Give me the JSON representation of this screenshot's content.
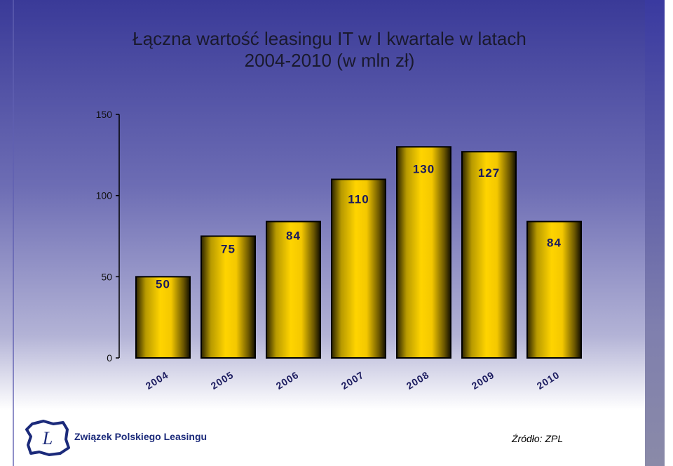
{
  "title": {
    "line1": "Łączna wartość leasingu IT w I kwartale w latach",
    "line2": "2004-2010 (w mln zł)"
  },
  "chart_data": {
    "type": "bar",
    "categories": [
      "2004",
      "2005",
      "2006",
      "2007",
      "2008",
      "2009",
      "2010"
    ],
    "values": [
      50,
      75,
      84,
      110,
      130,
      127,
      84
    ],
    "data_labels": [
      "50",
      "75",
      "84",
      "110",
      "130",
      "127",
      "84"
    ],
    "y_ticks": [
      "0",
      "50",
      "100",
      "150"
    ],
    "ylim": [
      0,
      150
    ],
    "xlabel": "",
    "ylabel": "",
    "grid": false,
    "legend": "none",
    "bar_colors": {
      "center": "#ffd400",
      "edge": "#1a1400",
      "outline": "#000000"
    }
  },
  "footer": {
    "organization": "Związek Polskiego Leasingu",
    "logo_letter": "L",
    "source": "Źródło: ZPL"
  },
  "colors": {
    "background_top": "#3a3a98",
    "background_bottom": "#ffffff",
    "logo_blue": "#1b2a7a"
  }
}
